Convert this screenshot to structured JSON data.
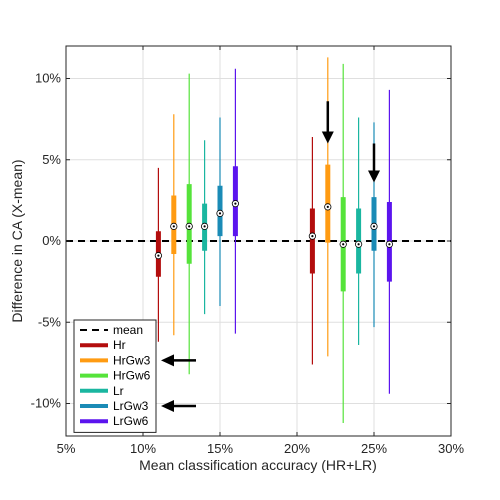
{
  "chart_data": {
    "type": "box",
    "xlabel": "Mean classification accuracy (HR+LR)",
    "ylabel": "Difference in CA (X-mean)",
    "xlim": [
      5,
      30
    ],
    "ylim": [
      -12,
      12
    ],
    "x_ticks": [
      5,
      10,
      15,
      20,
      25,
      30
    ],
    "x_tick_labels": [
      "5%",
      "10%",
      "15%",
      "20%",
      "25%",
      "30%"
    ],
    "y_ticks": [
      10,
      5,
      0,
      -5,
      -10
    ],
    "y_tick_labels": [
      "10%",
      "5%",
      "0%",
      "-5%",
      "-10%"
    ],
    "grid": true,
    "legend_position": "bottom-left",
    "mean_line": {
      "label": "mean",
      "y": 0,
      "color": "#000000",
      "style": "dashed"
    },
    "series": [
      {
        "name": "Hr",
        "color": "#b30d0d",
        "boxes": [
          {
            "x": 11,
            "min": -6.2,
            "q1": -2.2,
            "median": -0.9,
            "q3": 0.6,
            "max": 4.5
          },
          {
            "x": 21,
            "min": -7.6,
            "q1": -2.0,
            "median": 0.3,
            "q3": 2.0,
            "max": 6.4
          }
        ]
      },
      {
        "name": "HrGw3",
        "color": "#ff9b12",
        "boxes": [
          {
            "x": 12,
            "min": -5.8,
            "q1": -0.8,
            "median": 0.9,
            "q3": 2.8,
            "max": 7.8
          },
          {
            "x": 22,
            "min": -7.1,
            "q1": -0.1,
            "median": 2.1,
            "q3": 4.7,
            "max": 11.3
          }
        ]
      },
      {
        "name": "HrGw6",
        "color": "#55e33a",
        "boxes": [
          {
            "x": 13,
            "min": -8.2,
            "q1": -1.4,
            "median": 0.9,
            "q3": 3.5,
            "max": 10.3
          },
          {
            "x": 23,
            "min": -11.2,
            "q1": -3.1,
            "median": -0.2,
            "q3": 2.7,
            "max": 10.9
          }
        ]
      },
      {
        "name": "Lr",
        "color": "#1ab6a0",
        "boxes": [
          {
            "x": 14,
            "min": -4.5,
            "q1": -0.6,
            "median": 0.9,
            "q3": 2.3,
            "max": 6.2
          },
          {
            "x": 24,
            "min": -6.4,
            "q1": -2.0,
            "median": -0.2,
            "q3": 2.0,
            "max": 7.6
          }
        ]
      },
      {
        "name": "LrGw3",
        "color": "#1a8bb6",
        "boxes": [
          {
            "x": 15,
            "min": -4.0,
            "q1": 0.3,
            "median": 1.7,
            "q3": 3.4,
            "max": 7.6
          },
          {
            "x": 25,
            "min": -5.3,
            "q1": -0.6,
            "median": 0.9,
            "q3": 2.7,
            "max": 7.3
          }
        ]
      },
      {
        "name": "LrGw6",
        "color": "#5b14ee",
        "boxes": [
          {
            "x": 16,
            "min": -5.7,
            "q1": 0.3,
            "median": 2.3,
            "q3": 4.6,
            "max": 10.6
          },
          {
            "x": 26,
            "min": -9.4,
            "q1": -2.5,
            "median": -0.2,
            "q3": 2.4,
            "max": 9.3
          }
        ]
      }
    ],
    "annotations": [
      {
        "type": "arrow-down",
        "x": 22,
        "y_top": 8.6,
        "y_tip": 6.0
      },
      {
        "type": "arrow-down",
        "x": 25,
        "y_top": 6.0,
        "y_tip": 3.6
      },
      {
        "type": "arrow-left",
        "legend_series": "HrGw3"
      },
      {
        "type": "arrow-left",
        "legend_series": "LrGw3"
      }
    ]
  }
}
